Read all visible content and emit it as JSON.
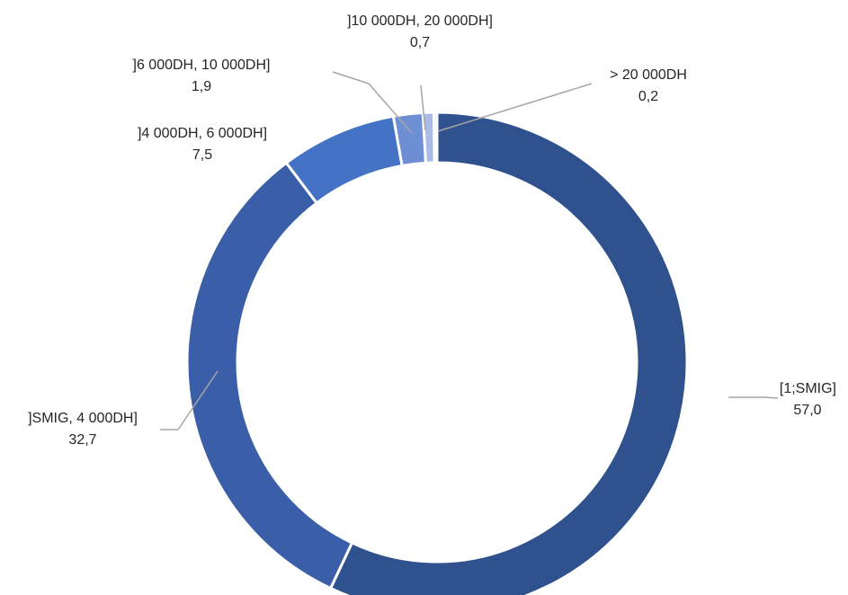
{
  "chart_data": {
    "type": "pie",
    "variant": "donut",
    "title": "",
    "categories": [
      "[1;SMIG]",
      "]SMIG, 4 000DH]",
      "]4 000DH, 6 000DH]",
      "]6 000DH, 10 000DH]",
      "]10 000DH, 20 000DH]",
      "> 20 000DH"
    ],
    "values": [
      57.0,
      32.7,
      7.5,
      1.9,
      0.7,
      0.2
    ],
    "value_labels": [
      "57,0",
      "32,7",
      "7,5",
      "1,9",
      "0,7",
      "0,2"
    ],
    "colors": [
      "#2f528f",
      "#3a5fa8",
      "#4472c4",
      "#6f8fd4",
      "#a9bbe6",
      "#cdd7f0"
    ],
    "leader_color": "#a6a6a6",
    "legend": "none"
  }
}
